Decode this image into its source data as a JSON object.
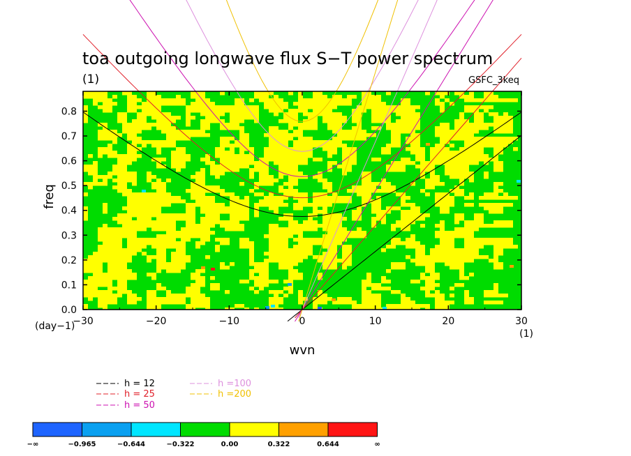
{
  "chart_data": {
    "type": "heatmap",
    "title": "toa outgoing longwave flux S−T power spectrum",
    "subtitle": "(1)",
    "annotation": "GSFC_3keq",
    "xlabel": "wvn",
    "ylabel": "freq",
    "x_unit": "(1)",
    "y_unit": "(day−1)",
    "xlim": [
      -30,
      30
    ],
    "ylim": [
      0,
      0.88
    ],
    "x_ticks": [
      "−30",
      "−20",
      "−10",
      "0",
      "10",
      "20",
      "30"
    ],
    "x_tick_values": [
      -30,
      -20,
      -10,
      0,
      10,
      20,
      30
    ],
    "y_ticks": [
      "0.0",
      "0.1",
      "0.2",
      "0.3",
      "0.4",
      "0.5",
      "0.6",
      "0.7",
      "0.8"
    ],
    "y_tick_values": [
      0,
      0.1,
      0.2,
      0.3,
      0.4,
      0.5,
      0.6,
      0.7,
      0.8
    ],
    "field": "noisy mix of green (−0.322 to 0) and yellow (0 to 0.322) with rare cyan, blue, orange and red specks",
    "dispersion_curves": [
      {
        "label": "h = 12",
        "color": "#000000",
        "equivalent_depth_m": 12
      },
      {
        "label": "h = 25",
        "color": "#e0202a",
        "equivalent_depth_m": 25
      },
      {
        "label": "h = 50",
        "color": "#cc10b0",
        "equivalent_depth_m": 50
      },
      {
        "label": "h =100",
        "color": "#dd90dd",
        "equivalent_depth_m": 100
      },
      {
        "label": "h =200",
        "color": "#f0c000",
        "equivalent_depth_m": 200
      }
    ],
    "colorbar": {
      "labels": [
        "−∞",
        "−0.965",
        "−0.644",
        "−0.322",
        "0.00",
        "0.322",
        "0.644",
        "∞"
      ],
      "colors": [
        "#1e64ff",
        "#0aa0f0",
        "#00e6ff",
        "#00dc00",
        "#ffff00",
        "#ffa000",
        "#ff1414"
      ]
    }
  }
}
